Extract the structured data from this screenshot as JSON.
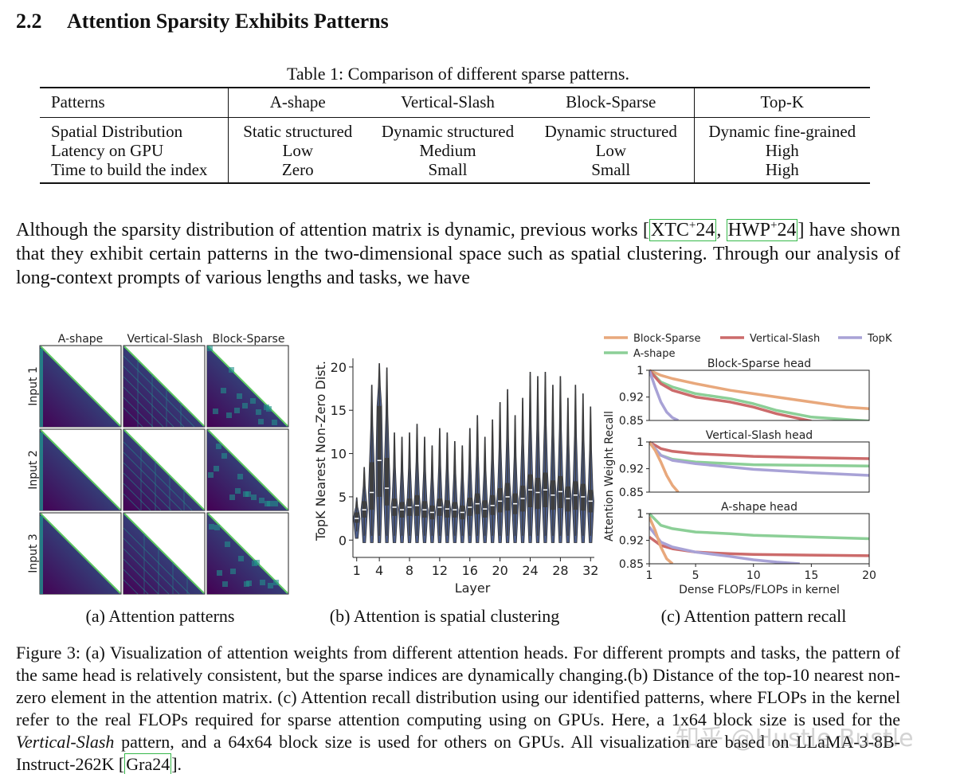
{
  "section": {
    "number": "2.2",
    "title": "Attention Sparsity Exhibits Patterns"
  },
  "table": {
    "caption": "Table 1: Comparison of different sparse patterns.",
    "headers": [
      "Patterns",
      "A-shape",
      "Vertical-Slash",
      "Block-Sparse",
      "Top-K"
    ],
    "rows": [
      [
        "Spatial Distribution",
        "Static structured",
        "Dynamic structured",
        "Dynamic structured",
        "Dynamic fine-grained"
      ],
      [
        "Latency on GPU",
        "Low",
        "Medium",
        "Low",
        "High"
      ],
      [
        "Time to build the index",
        "Zero",
        "Small",
        "Small",
        "High"
      ]
    ]
  },
  "paragraph": {
    "before": "Although the sparsity distribution of attention matrix is dynamic, previous works [",
    "cite1_text": "XTC",
    "cite1_sup": "+",
    "cite1_end": "24",
    "sep": ", ",
    "cite2_text": "HWP",
    "cite2_sup": "+",
    "cite2_end": "24",
    "after": "] have shown that they exhibit certain patterns in the two-dimensional space such as spatial clustering. Through our analysis of long-context prompts of various lengths and tasks, we have"
  },
  "figure": {
    "panel_a": {
      "col_labels": [
        "A-shape",
        "Vertical-Slash",
        "Block-Sparse"
      ],
      "row_labels": [
        "Input 1",
        "Input 2",
        "Input 3"
      ],
      "caption": "(a) Attention patterns",
      "colors": {
        "low": "#440154",
        "mid": "#21918c",
        "high": "#5ec962"
      }
    },
    "panel_b": {
      "caption": "(b) Attention is spatial clustering",
      "chart_data": {
        "type": "violin",
        "xlabel": "Layer",
        "ylabel": "TopK Nearest Non-Zero Dist.",
        "x_ticks": [
          1,
          4,
          8,
          12,
          16,
          20,
          24,
          28,
          32
        ],
        "y_ticks": [
          0,
          5,
          10,
          15,
          20
        ],
        "ylim": [
          -2,
          21
        ],
        "xlim": [
          0.5,
          32.5
        ],
        "layers": [
          1,
          2,
          3,
          4,
          5,
          6,
          7,
          8,
          9,
          10,
          11,
          12,
          13,
          14,
          15,
          16,
          17,
          18,
          19,
          20,
          21,
          22,
          23,
          24,
          25,
          26,
          27,
          28,
          29,
          30,
          31,
          32
        ],
        "medians": [
          2.5,
          3.5,
          5.5,
          9.2,
          6.0,
          3.8,
          3.5,
          3.8,
          4.0,
          3.5,
          3.2,
          3.8,
          3.6,
          3.5,
          3.2,
          3.8,
          4.2,
          3.6,
          4.0,
          4.5,
          5.0,
          4.2,
          4.8,
          5.8,
          5.5,
          5.8,
          5.2,
          5.6,
          4.8,
          5.2,
          5.0,
          4.5
        ],
        "q1": [
          2.0,
          2.6,
          3.5,
          5.0,
          4.0,
          2.8,
          2.6,
          2.8,
          2.8,
          2.6,
          2.4,
          2.8,
          2.6,
          2.6,
          2.4,
          2.8,
          3.0,
          2.6,
          2.9,
          3.2,
          3.4,
          3.0,
          3.3,
          3.8,
          3.6,
          3.8,
          3.5,
          3.7,
          3.3,
          3.5,
          3.4,
          3.2
        ],
        "q3": [
          3.2,
          4.5,
          9.0,
          15.5,
          9.5,
          4.8,
          4.4,
          4.8,
          5.2,
          4.5,
          4.0,
          4.8,
          4.6,
          4.4,
          4.0,
          4.9,
          5.4,
          4.6,
          5.2,
          6.0,
          6.6,
          5.4,
          6.3,
          7.6,
          7.2,
          7.8,
          6.9,
          7.4,
          6.2,
          6.8,
          6.5,
          5.8
        ],
        "mins": [
          1.0,
          0.5,
          0.5,
          0.5,
          0.5,
          0.5,
          0.5,
          0.5,
          0.5,
          0.5,
          0.5,
          0.5,
          0.5,
          0.5,
          0.5,
          0.5,
          0.5,
          0.5,
          0.5,
          0.5,
          0.5,
          0.5,
          0.5,
          0.5,
          0.5,
          0.5,
          0.5,
          0.5,
          0.5,
          0.5,
          0.5,
          0.5
        ],
        "maxs": [
          4.5,
          8.0,
          17.5,
          20.0,
          19.5,
          12.0,
          11.5,
          12.0,
          13.0,
          11.5,
          10.5,
          12.5,
          12.0,
          11.0,
          10.5,
          12.5,
          14.0,
          11.5,
          13.5,
          15.5,
          17.0,
          14.0,
          16.0,
          19.0,
          18.5,
          19.0,
          17.5,
          18.5,
          16.0,
          17.5,
          16.5,
          15.0
        ],
        "colors": {
          "violin": "#4c5d8a",
          "box": "#3f3f3f",
          "median": "#ffffff"
        }
      }
    },
    "panel_c": {
      "caption": "(c) Attention pattern recall",
      "chart_data": {
        "type": "line",
        "xlabel": "Dense FLOPs/FLOPs in kernel",
        "ylabel": "Attention Weight Recall",
        "x_ticks": [
          1,
          5,
          10,
          15,
          20
        ],
        "y_ticks": [
          0.85,
          0.92,
          1
        ],
        "y_tick_labels": [
          "0.85",
          "0.92",
          "1"
        ],
        "xlim": [
          1,
          20
        ],
        "ylim": [
          0.85,
          1.0
        ],
        "legend": [
          {
            "name": "Block-Sparse",
            "color": "#e8a87c"
          },
          {
            "name": "Vertical-Slash",
            "color": "#cc6b6b"
          },
          {
            "name": "TopK",
            "color": "#a8a2d6"
          },
          {
            "name": "A-shape",
            "color": "#8ccf97"
          }
        ],
        "subplots": [
          {
            "title": "Block-Sparse head",
            "series": [
              {
                "name": "Block-Sparse",
                "x": [
                  1,
                  2,
                  3,
                  5,
                  8,
                  10,
                  12,
                  15,
                  18,
                  20
                ],
                "y": [
                  1.0,
                  0.985,
                  0.975,
                  0.96,
                  0.94,
                  0.93,
                  0.92,
                  0.905,
                  0.89,
                  0.885
                ]
              },
              {
                "name": "A-shape",
                "x": [
                  1,
                  2,
                  3,
                  5,
                  8,
                  10,
                  12,
                  15,
                  20
                ],
                "y": [
                  1.0,
                  0.965,
                  0.95,
                  0.93,
                  0.915,
                  0.9,
                  0.88,
                  0.86,
                  0.848
                ]
              },
              {
                "name": "Vertical-Slash",
                "x": [
                  1,
                  2,
                  3,
                  5,
                  8,
                  10,
                  12,
                  15
                ],
                "y": [
                  1.0,
                  0.96,
                  0.94,
                  0.92,
                  0.905,
                  0.89,
                  0.87,
                  0.848
                ]
              },
              {
                "name": "TopK",
                "x": [
                  1,
                  1.5,
                  2,
                  2.5,
                  3,
                  3.5
                ],
                "y": [
                  1.0,
                  0.95,
                  0.905,
                  0.875,
                  0.858,
                  0.85
                ]
              }
            ]
          },
          {
            "title": "Vertical-Slash head",
            "series": [
              {
                "name": "Vertical-Slash",
                "x": [
                  1,
                  2,
                  3,
                  5,
                  8,
                  10,
                  15,
                  20
                ],
                "y": [
                  1.0,
                  0.98,
                  0.972,
                  0.965,
                  0.96,
                  0.957,
                  0.953,
                  0.95
                ]
              },
              {
                "name": "A-shape",
                "x": [
                  1,
                  2,
                  3,
                  5,
                  8,
                  10,
                  15,
                  20
                ],
                "y": [
                  1.0,
                  0.96,
                  0.948,
                  0.94,
                  0.935,
                  0.932,
                  0.93,
                  0.928
                ]
              },
              {
                "name": "TopK",
                "x": [
                  1,
                  2,
                  3,
                  5,
                  8,
                  10,
                  15,
                  20
                ],
                "y": [
                  1.0,
                  0.96,
                  0.945,
                  0.935,
                  0.925,
                  0.918,
                  0.908,
                  0.9
                ]
              },
              {
                "name": "Block-Sparse",
                "x": [
                  1,
                  1.5,
                  2,
                  2.5,
                  3,
                  3.5
                ],
                "y": [
                  1.0,
                  0.975,
                  0.94,
                  0.9,
                  0.87,
                  0.85
                ]
              }
            ]
          },
          {
            "title": "A-shape head",
            "series": [
              {
                "name": "A-shape",
                "x": [
                  1,
                  2,
                  3,
                  5,
                  8,
                  10,
                  15,
                  20
                ],
                "y": [
                  1.0,
                  0.965,
                  0.955,
                  0.945,
                  0.94,
                  0.935,
                  0.93,
                  0.925
                ]
              },
              {
                "name": "Vertical-Slash",
                "x": [
                  1,
                  2,
                  3,
                  5,
                  8,
                  10,
                  15,
                  20
                ],
                "y": [
                  0.93,
                  0.905,
                  0.895,
                  0.885,
                  0.88,
                  0.878,
                  0.876,
                  0.874
                ]
              },
              {
                "name": "TopK",
                "x": [
                  1,
                  2,
                  3,
                  5,
                  8,
                  10,
                  12,
                  14
                ],
                "y": [
                  0.96,
                  0.915,
                  0.9,
                  0.885,
                  0.872,
                  0.862,
                  0.855,
                  0.85
                ]
              },
              {
                "name": "Block-Sparse",
                "x": [
                  1,
                  1.5,
                  2,
                  2.5,
                  3
                ],
                "y": [
                  0.99,
                  0.95,
                  0.9,
                  0.865,
                  0.85
                ]
              }
            ]
          }
        ]
      }
    },
    "caption": {
      "p1": "Figure 3: (a) Visualization of attention weights from different attention heads. For different prompts and tasks, the pattern of the same head is relatively consistent, but the sparse indices are dynamically changing.(b) Distance of the top-10 nearest non-zero element in the attention matrix. (c) Attention recall distribution using our identified patterns, where FLOPs in the kernel refer to the real FLOPs required for sparse attention computing using on GPUs. Here, a 1x64 block size is used for the ",
      "em": "Vertical-Slash",
      "p2": " pattern, and a 64x64 block size is used for others on GPUs. All visualization are based on LLaMA-3-8B-Instruct-262K [",
      "cite": "Gra24",
      "p3": "]."
    }
  },
  "watermark": "知乎 @Hustle Bustle"
}
